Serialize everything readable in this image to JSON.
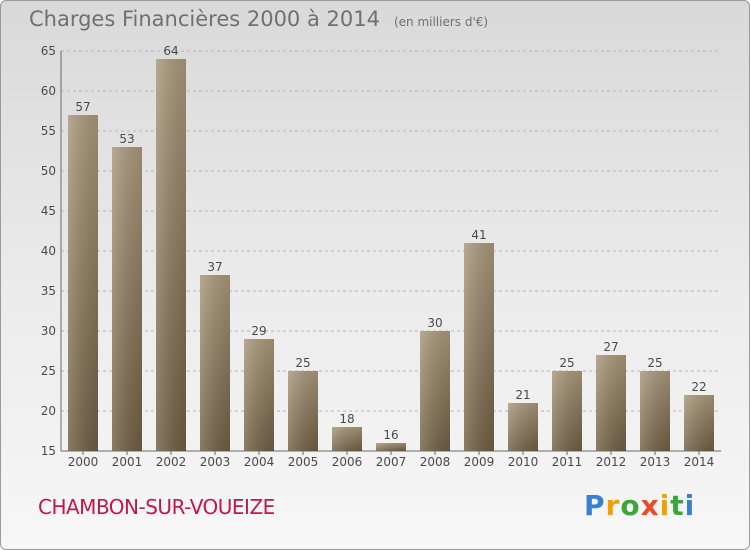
{
  "title": "Charges Financières 2000 à 2014",
  "unit_label": "(en milliers d'€)",
  "commune": "CHAMBON-SUR-VOUEIZE",
  "logo": "Proxiti",
  "colors": {
    "bar": "#8f7d60",
    "grid": "#b5b5b5",
    "text": "#4a4a4a",
    "commune": "#c0184e"
  },
  "chart_data": {
    "type": "bar",
    "title": "Charges Financières 2000 à 2014",
    "subtitle": "(en milliers d'€)",
    "categories": [
      "2000",
      "2001",
      "2002",
      "2003",
      "2004",
      "2005",
      "2006",
      "2007",
      "2008",
      "2009",
      "2010",
      "2011",
      "2012",
      "2013",
      "2014"
    ],
    "values": [
      57,
      53,
      64,
      37,
      29,
      25,
      18,
      16,
      30,
      41,
      21,
      25,
      27,
      25,
      22
    ],
    "ylim": [
      15,
      65
    ],
    "yticks": [
      15,
      20,
      25,
      30,
      35,
      40,
      45,
      50,
      55,
      60,
      65
    ],
    "grid": true,
    "data_labels": true
  }
}
